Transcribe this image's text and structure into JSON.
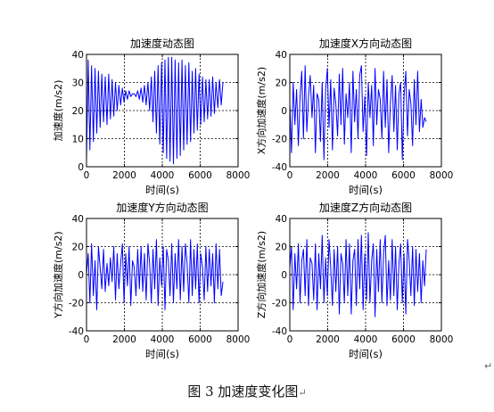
{
  "chart_data": [
    {
      "type": "line",
      "title": "加速度动态图",
      "xlabel": "时间(s)",
      "ylabel": "加速度(m/s2)",
      "xlim": [
        0,
        8000
      ],
      "ylim": [
        0,
        40
      ],
      "xticks": [
        0,
        2000,
        4000,
        6000,
        8000
      ],
      "yticks": [
        0,
        10,
        20,
        30,
        40
      ],
      "grid": "dotted",
      "series": [
        {
          "color": "#0000ff",
          "x": [
            0,
            90,
            180,
            270,
            360,
            450,
            540,
            630,
            720,
            810,
            900,
            990,
            1080,
            1170,
            1260,
            1350,
            1440,
            1530,
            1620,
            1710,
            1800,
            1890,
            1980,
            2070,
            2160,
            2250,
            2340,
            2430,
            2520,
            2610,
            2700,
            2790,
            2880,
            2970,
            3060,
            3150,
            3240,
            3330,
            3420,
            3510,
            3600,
            3690,
            3780,
            3870,
            3960,
            4050,
            4140,
            4230,
            4320,
            4410,
            4500,
            4590,
            4680,
            4770,
            4860,
            4950,
            5040,
            5130,
            5220,
            5310,
            5400,
            5490,
            5580,
            5670,
            5760,
            5850,
            5940,
            6030,
            6120,
            6210,
            6300,
            6390,
            6480,
            6570,
            6660,
            6750,
            6840,
            6930,
            7020,
            7110,
            7200
          ],
          "values": [
            2,
            38,
            6,
            36,
            9,
            35,
            12,
            34,
            14,
            33,
            16,
            32,
            15,
            33,
            17,
            31,
            18,
            30,
            20,
            29,
            22,
            28,
            23,
            27,
            24,
            27,
            25,
            26,
            26,
            25,
            27,
            24,
            28,
            23,
            29,
            22,
            30,
            20,
            32,
            16,
            34,
            12,
            36,
            8,
            37,
            5,
            38,
            3,
            39,
            2,
            39,
            1,
            38,
            3,
            37,
            4,
            38,
            6,
            36,
            8,
            37,
            9,
            34,
            12,
            35,
            13,
            33,
            15,
            32,
            16,
            31,
            17,
            31,
            18,
            32,
            19,
            30,
            21,
            31,
            22,
            30
          ]
        }
      ]
    },
    {
      "type": "line",
      "title": "加速度X方向动态图",
      "xlabel": "时间(s)",
      "ylabel": "X方向加速度(m/s2)",
      "xlim": [
        0,
        8000
      ],
      "ylim": [
        -40,
        40
      ],
      "xticks": [
        0,
        2000,
        4000,
        6000,
        8000
      ],
      "yticks": [
        -40,
        -20,
        0,
        20,
        40
      ],
      "grid": "dotted",
      "series": [
        {
          "color": "#0000ff",
          "x": [
            0,
            90,
            180,
            270,
            360,
            450,
            540,
            630,
            720,
            810,
            900,
            990,
            1080,
            1170,
            1260,
            1350,
            1440,
            1530,
            1620,
            1710,
            1800,
            1890,
            1980,
            2070,
            2160,
            2250,
            2340,
            2430,
            2520,
            2610,
            2700,
            2790,
            2880,
            2970,
            3060,
            3150,
            3240,
            3330,
            3420,
            3510,
            3600,
            3690,
            3780,
            3870,
            3960,
            4050,
            4140,
            4230,
            4320,
            4410,
            4500,
            4590,
            4680,
            4770,
            4860,
            4950,
            5040,
            5130,
            5220,
            5310,
            5400,
            5490,
            5580,
            5670,
            5760,
            5850,
            5940,
            6030,
            6120,
            6210,
            6300,
            6390,
            6480,
            6570,
            6660,
            6750,
            6840,
            6930,
            7020,
            7110,
            7200
          ],
          "values": [
            5,
            -30,
            20,
            -10,
            15,
            -25,
            10,
            28,
            -20,
            32,
            -15,
            10,
            25,
            -5,
            18,
            -30,
            12,
            8,
            -22,
            20,
            -35,
            15,
            30,
            -12,
            22,
            -28,
            16,
            5,
            -18,
            26,
            -10,
            30,
            -24,
            12,
            -5,
            20,
            -30,
            28,
            -8,
            15,
            -20,
            25,
            32,
            -15,
            10,
            -32,
            20,
            -5,
            18,
            -25,
            30,
            -10,
            15,
            8,
            -20,
            28,
            -12,
            22,
            -30,
            5,
            25,
            -15,
            18,
            -28,
            12,
            20,
            -35,
            10,
            28,
            -18,
            15,
            5,
            -25,
            22,
            -10,
            28,
            -15,
            8,
            -12,
            -5,
            -8
          ]
        }
      ]
    },
    {
      "type": "line",
      "title": "加速度Y方向动态图",
      "xlabel": "时间(s)",
      "ylabel": "Y方向加速度(m/s2)",
      "xlim": [
        0,
        8000
      ],
      "ylim": [
        -40,
        40
      ],
      "xticks": [
        0,
        2000,
        4000,
        6000,
        8000
      ],
      "yticks": [
        -40,
        -20,
        0,
        20,
        40
      ],
      "grid": "dotted",
      "series": [
        {
          "color": "#0000ff",
          "x": [
            0,
            90,
            180,
            270,
            360,
            450,
            540,
            630,
            720,
            810,
            900,
            990,
            1080,
            1170,
            1260,
            1350,
            1440,
            1530,
            1620,
            1710,
            1800,
            1890,
            1980,
            2070,
            2160,
            2250,
            2340,
            2430,
            2520,
            2610,
            2700,
            2790,
            2880,
            2970,
            3060,
            3150,
            3240,
            3330,
            3420,
            3510,
            3600,
            3690,
            3780,
            3870,
            3960,
            4050,
            4140,
            4230,
            4320,
            4410,
            4500,
            4590,
            4680,
            4770,
            4860,
            4950,
            5040,
            5130,
            5220,
            5310,
            5400,
            5490,
            5580,
            5670,
            5760,
            5850,
            5940,
            6030,
            6120,
            6210,
            6300,
            6390,
            6480,
            6570,
            6660,
            6750,
            6840,
            6930,
            7020,
            7110,
            7200
          ],
          "values": [
            0,
            15,
            -20,
            22,
            -15,
            10,
            -25,
            20,
            5,
            -10,
            18,
            -12,
            8,
            -8,
            12,
            -5,
            20,
            -18,
            15,
            -10,
            8,
            22,
            -20,
            15,
            -8,
            20,
            -22,
            10,
            5,
            -15,
            18,
            -10,
            20,
            -12,
            15,
            -18,
            22,
            8,
            -20,
            18,
            -10,
            25,
            -22,
            12,
            -8,
            20,
            -25,
            18,
            10,
            -15,
            22,
            -20,
            15,
            -10,
            25,
            -18,
            20,
            -12,
            22,
            8,
            -20,
            25,
            -15,
            18,
            -10,
            22,
            -20,
            15,
            5,
            -18,
            20,
            -12,
            18,
            -8,
            15,
            -20,
            22,
            -10,
            18,
            -15,
            -5
          ]
        }
      ]
    },
    {
      "type": "line",
      "title": "加速度Z方向动态图",
      "xlabel": "时间(s)",
      "ylabel": "Z方向加速度(m/s2)",
      "xlim": [
        0,
        8000
      ],
      "ylim": [
        -40,
        40
      ],
      "xticks": [
        0,
        2000,
        4000,
        6000,
        8000
      ],
      "yticks": [
        -40,
        -20,
        0,
        20,
        40
      ],
      "grid": "dotted",
      "series": [
        {
          "color": "#0000ff",
          "x": [
            0,
            90,
            180,
            270,
            360,
            450,
            540,
            630,
            720,
            810,
            900,
            990,
            1080,
            1170,
            1260,
            1350,
            1440,
            1530,
            1620,
            1710,
            1800,
            1890,
            1980,
            2070,
            2160,
            2250,
            2340,
            2430,
            2520,
            2610,
            2700,
            2790,
            2880,
            2970,
            3060,
            3150,
            3240,
            3330,
            3420,
            3510,
            3600,
            3690,
            3780,
            3870,
            3960,
            4050,
            4140,
            4230,
            4320,
            4410,
            4500,
            4590,
            4680,
            4770,
            4860,
            4950,
            5040,
            5130,
            5220,
            5310,
            5400,
            5490,
            5580,
            5670,
            5760,
            5850,
            5940,
            6030,
            6120,
            6210,
            6300,
            6390,
            6480,
            6570,
            6660,
            6750,
            6840,
            6930,
            7020,
            7110,
            7200
          ],
          "values": [
            5,
            20,
            -25,
            15,
            -10,
            22,
            -20,
            10,
            18,
            -15,
            25,
            -22,
            12,
            8,
            -18,
            22,
            -25,
            15,
            -10,
            28,
            -20,
            12,
            -15,
            25,
            5,
            -22,
            18,
            -12,
            20,
            -28,
            15,
            8,
            -20,
            25,
            -15,
            22,
            -28,
            10,
            18,
            -22,
            25,
            -10,
            28,
            -25,
            15,
            -18,
            30,
            -20,
            10,
            22,
            -30,
            18,
            -12,
            25,
            -20,
            15,
            28,
            -22,
            10,
            -18,
            25,
            -15,
            20,
            -25,
            8,
            22,
            -20,
            15,
            -28,
            25,
            10,
            -15,
            20,
            -22,
            18,
            -12,
            15,
            -20,
            10,
            -8,
            18
          ]
        }
      ]
    }
  ],
  "caption": "图 3  加速度变化图",
  "caption_mark": "↵",
  "side_mark": "↵"
}
